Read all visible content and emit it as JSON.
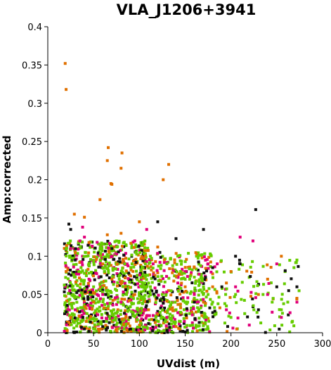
{
  "chart_data": {
    "type": "scatter",
    "title": "VLA_J1206+3941",
    "xlabel": "UVdist (m)",
    "ylabel": "Amp:corrected",
    "xlim": [
      0,
      300
    ],
    "ylim": [
      0,
      0.4
    ],
    "x_ticks": [
      0,
      50,
      100,
      150,
      200,
      250,
      300
    ],
    "y_ticks": [
      0,
      0.05,
      0.1,
      0.15,
      0.2,
      0.25,
      0.3,
      0.35,
      0.4
    ],
    "grid": false,
    "colors": {
      "green": "#66cc00",
      "orange": "#e07000",
      "magenta": "#e0007a",
      "black": "#111111"
    },
    "series": [
      {
        "color": "orange",
        "x": [
          19,
          20,
          66,
          81,
          65,
          69,
          70,
          80,
          126,
          132,
          29,
          57,
          40,
          100,
          45,
          60,
          70,
          95,
          110,
          150,
          170,
          20,
          25,
          80,
          30,
          120,
          200,
          180,
          230,
          255,
          272,
          50,
          65,
          88,
          140,
          160,
          195,
          240
        ],
        "y": [
          0.352,
          0.318,
          0.242,
          0.235,
          0.225,
          0.195,
          0.194,
          0.215,
          0.2,
          0.22,
          0.155,
          0.174,
          0.151,
          0.145,
          0.118,
          0.09,
          0.07,
          0.05,
          0.03,
          0.06,
          0.04,
          0.08,
          0.02,
          0.13,
          0.105,
          0.112,
          0.08,
          0.06,
          0.05,
          0.1,
          0.045,
          0.04,
          0.128,
          0.012,
          0.008,
          0.085,
          0.065,
          0.07
        ]
      },
      {
        "color": "magenta",
        "x": [
          38,
          40,
          35,
          95,
          108,
          150,
          175,
          210,
          224,
          250,
          255,
          272,
          220,
          195,
          160,
          130,
          80,
          70,
          60,
          45,
          30,
          25,
          115,
          205,
          185,
          240
        ],
        "y": [
          0.138,
          0.125,
          0.12,
          0.12,
          0.135,
          0.07,
          0.09,
          0.125,
          0.12,
          0.09,
          0.02,
          0.04,
          0.01,
          0.03,
          0.05,
          0.02,
          0.04,
          0.1,
          0.05,
          0.07,
          0.03,
          0.11,
          0.09,
          0.06,
          0.09,
          0.05
        ]
      },
      {
        "color": "black",
        "x": [
          23,
          25,
          70,
          120,
          140,
          170,
          205,
          227,
          250,
          210,
          190,
          230,
          263,
          180,
          160,
          60,
          40,
          30,
          90,
          110,
          272
        ],
        "y": [
          0.142,
          0.135,
          0.11,
          0.145,
          0.123,
          0.135,
          0.1,
          0.161,
          0.06,
          0.09,
          0.06,
          0.03,
          0.055,
          0.085,
          0.04,
          0.008,
          0.005,
          0.095,
          0.02,
          0.012,
          0.06
        ]
      },
      {
        "color": "green",
        "x": [
          50,
          55,
          62,
          72,
          78,
          86,
          92,
          100,
          108,
          118,
          125,
          140,
          150,
          160,
          170,
          180,
          195,
          205,
          215,
          225,
          235,
          245,
          255,
          262,
          272,
          42,
          34,
          28,
          58,
          66,
          75,
          84,
          96,
          104,
          112,
          130,
          145,
          155,
          165,
          175,
          200
        ],
        "y": [
          0.06,
          0.04,
          0.08,
          0.03,
          0.07,
          0.05,
          0.09,
          0.04,
          0.06,
          0.02,
          0.05,
          0.03,
          0.07,
          0.045,
          0.06,
          0.04,
          0.035,
          0.05,
          0.025,
          0.03,
          0.05,
          0.04,
          0.03,
          0.04,
          0.095,
          0.1,
          0.08,
          0.05,
          0.115,
          0.1,
          0.12,
          0.09,
          0.105,
          0.085,
          0.1,
          0.09,
          0.08,
          0.07,
          0.055,
          0.05,
          0.02
        ]
      }
    ],
    "background_cloud": {
      "note": "dense overlapping scatter of many points",
      "x_range": [
        15,
        280
      ],
      "y_range": [
        0,
        0.12
      ]
    }
  }
}
